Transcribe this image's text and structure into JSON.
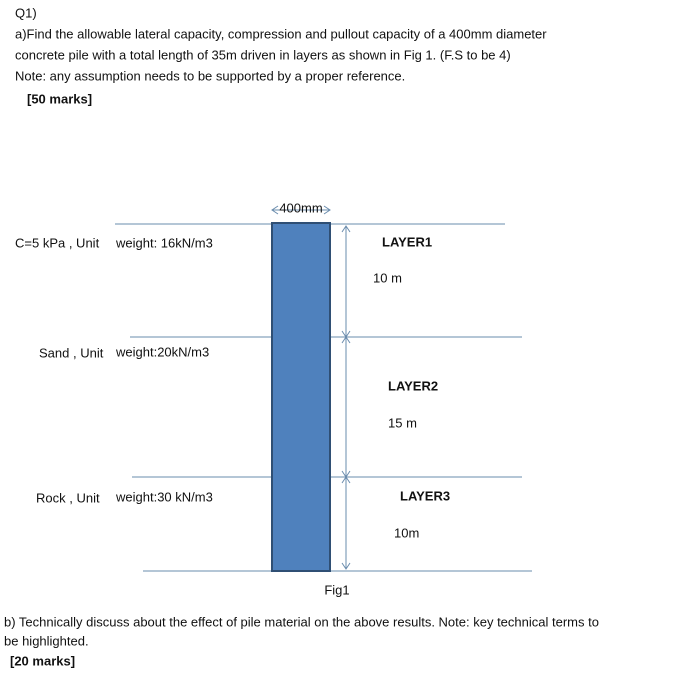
{
  "question": {
    "number": "Q1)",
    "part_a": [
      "a)Find the allowable lateral capacity, compression and pullout capacity of a 400mm diameter",
      "concrete pile with a total length of 35m driven in layers as shown in Fig 1. (F.S to be 4)",
      "Note: any assumption needs to be supported by a proper reference."
    ],
    "marks_a": "[50 marks]",
    "figure": {
      "diameter": "400mm",
      "layers": [
        {
          "soil_a": "C=5 kPa , Unit",
          "soil_b": "weight: 16kN/m3",
          "name": "LAYER1",
          "thickness": "10 m"
        },
        {
          "soil_a": "Sand , Unit",
          "soil_b": "weight:20kN/m3",
          "name": "LAYER2",
          "thickness": "15 m"
        },
        {
          "soil_a": "Rock  , Unit",
          "soil_b": "weight:30 kN/m3",
          "name": "LAYER3",
          "thickness": "10m"
        }
      ],
      "caption": "Fig1"
    },
    "part_b": [
      "b) Technically discuss about the effect of pile material on the above results. Note: key technical terms to",
      "be highlighted."
    ],
    "marks_b": "[20 marks]"
  }
}
